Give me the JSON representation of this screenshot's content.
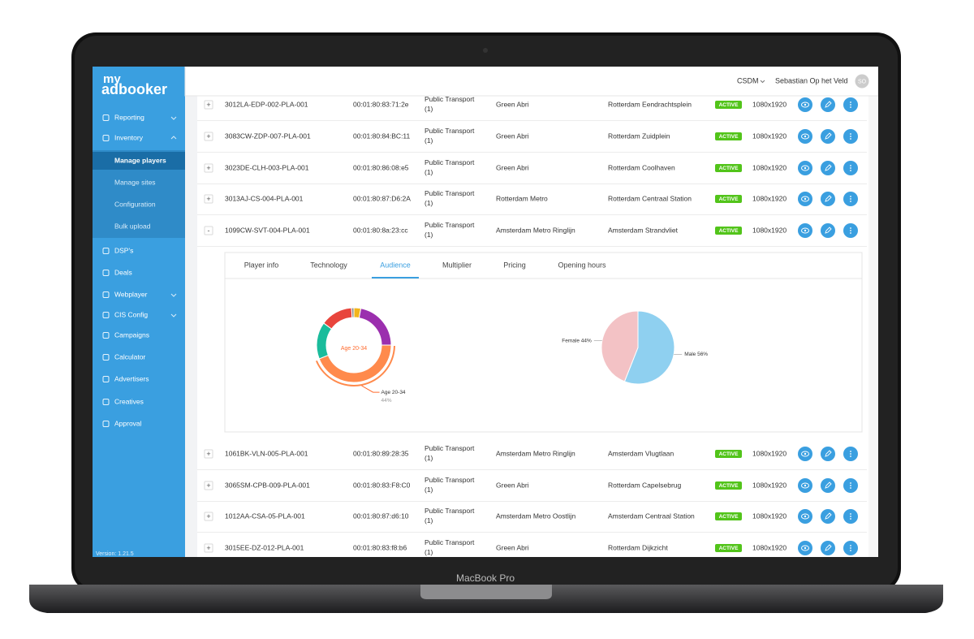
{
  "device": {
    "label": "MacBook Pro"
  },
  "sidebar": {
    "brand_top": "my",
    "brand_bottom": "adbooker",
    "menu": [
      {
        "label": "Reporting",
        "level": 1
      },
      {
        "label": "Inventory",
        "level": 1
      },
      {
        "label": "Manage players",
        "level": 2
      },
      {
        "label": "Manage sites",
        "level": 2
      },
      {
        "label": "Configuration",
        "level": 2
      },
      {
        "label": "Bulk upload",
        "level": 2
      },
      {
        "label": "DSP's",
        "level": 1
      },
      {
        "label": "Deals",
        "level": 1
      },
      {
        "label": "Webplayer",
        "level": 1
      },
      {
        "label": "CIS Config",
        "level": 1
      },
      {
        "label": "Campaigns",
        "level": 1
      },
      {
        "label": "Calculator",
        "level": 1
      },
      {
        "label": "Advertisers",
        "level": 1
      },
      {
        "label": "Creatives",
        "level": 1
      },
      {
        "label": "Approval",
        "level": 1
      }
    ],
    "version": "Version: 1.21.5"
  },
  "header": {
    "org": "CSDM",
    "user": "Sebastian Op het Veld",
    "avatar": "SO"
  },
  "table": {
    "rows": [
      {
        "toggle": "+",
        "id": "3012LA-EDP-002-PLA-001",
        "mac": "00:01:80:83:71:2e",
        "type": "Public Transport (1)",
        "network": "Green Abri",
        "location": "Rotterdam Eendrachtsplein",
        "status": "ACTIVE",
        "resolution": "1080x1920"
      },
      {
        "toggle": "+",
        "id": "3083CW-ZDP-007-PLA-001",
        "mac": "00:01:80:84:BC:11",
        "type": "Public Transport (1)",
        "network": "Green Abri",
        "location": "Rotterdam Zuidplein",
        "status": "ACTIVE",
        "resolution": "1080x1920"
      },
      {
        "toggle": "+",
        "id": "3023DE-CLH-003-PLA-001",
        "mac": "00:01:80:86:08:e5",
        "type": "Public Transport (1)",
        "network": "Green Abri",
        "location": "Rotterdam Coolhaven",
        "status": "ACTIVE",
        "resolution": "1080x1920"
      },
      {
        "toggle": "+",
        "id": "3013AJ-CS-004-PLA-001",
        "mac": "00:01:80:87:D6:2A",
        "type": "Public Transport (1)",
        "network": "Rotterdam Metro",
        "location": "Rotterdam Centraal Station",
        "status": "ACTIVE",
        "resolution": "1080x1920"
      },
      {
        "toggle": "-",
        "id": "1099CW-SVT-004-PLA-001",
        "mac": "00:01:80:8a:23:cc",
        "type": "Public Transport (1)",
        "network": "Amsterdam Metro Ringlijn",
        "location": "Amsterdam Strandvliet",
        "status": "ACTIVE",
        "resolution": "1080x1920"
      },
      {
        "toggle": "+",
        "id": "1061BK-VLN-005-PLA-001",
        "mac": "00:01:80:89:28:35",
        "type": "Public Transport (1)",
        "network": "Amsterdam Metro Ringlijn",
        "location": "Amsterdam Vlugtlaan",
        "status": "ACTIVE",
        "resolution": "1080x1920"
      },
      {
        "toggle": "+",
        "id": "3065SM-CPB-009-PLA-001",
        "mac": "00:01:80:83:F8:C0",
        "type": "Public Transport (1)",
        "network": "Green Abri",
        "location": "Rotterdam Capelsebrug",
        "status": "ACTIVE",
        "resolution": "1080x1920"
      },
      {
        "toggle": "+",
        "id": "1012AA-CSA-05-PLA-001",
        "mac": "00:01:80:87:d6:10",
        "type": "Public Transport (1)",
        "network": "Amsterdam Metro Oostlijn",
        "location": "Amsterdam Centraal Station",
        "status": "ACTIVE",
        "resolution": "1080x1920"
      },
      {
        "toggle": "+",
        "id": "3015EE-DZ-012-PLA-001",
        "mac": "00:01:80:83:f8:b6",
        "type": "Public Transport (1)",
        "network": "Green Abri",
        "location": "Rotterdam Dijkzicht",
        "status": "ACTIVE",
        "resolution": "1080x1920"
      }
    ]
  },
  "detail": {
    "tabs": [
      "Player info",
      "Technology",
      "Audience",
      "Multiplier",
      "Pricing",
      "Opening hours"
    ],
    "active_tab": 2
  },
  "chart_data": [
    {
      "type": "donut",
      "categories": [
        null,
        null,
        "Age 20-34",
        null,
        null,
        null
      ],
      "values": [
        3,
        22,
        44,
        16,
        14,
        1
      ],
      "value_labels": [
        null,
        null,
        "44%",
        null,
        null,
        null
      ],
      "colors": [
        "#f2b51c",
        "#9b2fae",
        "#ff8a4c",
        "#1abc9c",
        "#e8453c",
        "#8a8a8a"
      ]
    },
    {
      "type": "pie",
      "categories": [
        "Female 44%",
        "Male 56%"
      ],
      "values": [
        44,
        56
      ],
      "colors": [
        "#f3c2c5",
        "#8fd0f0"
      ]
    }
  ]
}
